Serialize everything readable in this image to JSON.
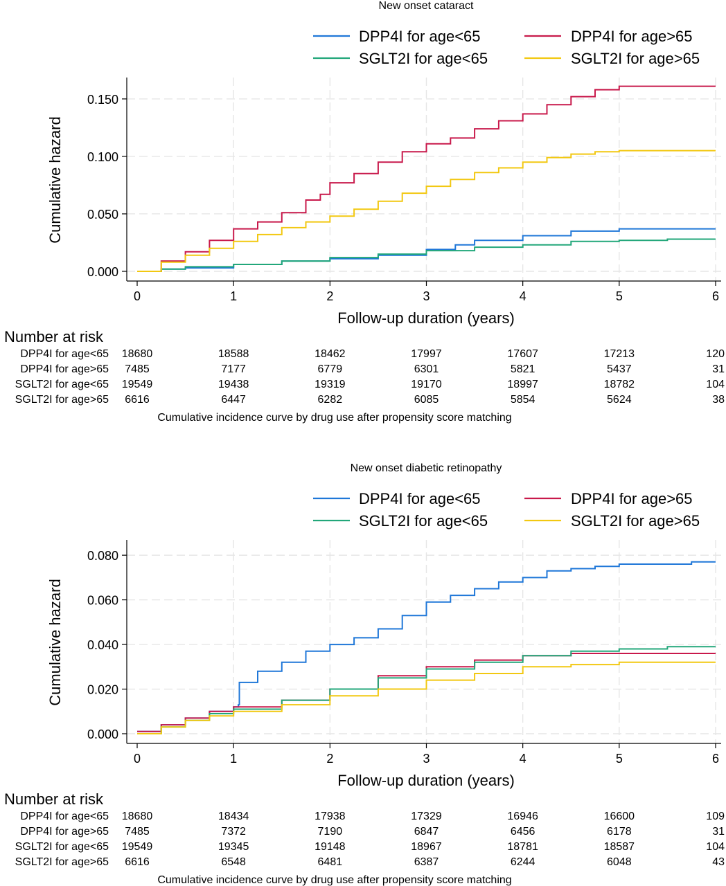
{
  "charts": [
    {
      "title": "New onset cataract",
      "ylabel": "Cumulative hazard",
      "xlabel": "Follow-up duration (years)",
      "risk_header": "Number at risk",
      "caption": "Cumulative incidence curve by drug use after propensity score matching",
      "risk_table": {
        "labels": [
          "DPP4I for age<65",
          "DPP4I for age>65",
          "SGLT2I for age<65",
          "SGLT2I for age>65"
        ],
        "rows": [
          [
            "18680",
            "18588",
            "18462",
            "17997",
            "17607",
            "17213",
            "120"
          ],
          [
            "7485",
            "7177",
            "6779",
            "6301",
            "5821",
            "5437",
            "31"
          ],
          [
            "19549",
            "19438",
            "19319",
            "19170",
            "18997",
            "18782",
            "104"
          ],
          [
            "6616",
            "6447",
            "6282",
            "6085",
            "5854",
            "5624",
            "38"
          ]
        ]
      }
    },
    {
      "title": "New onset diabetic retinopathy",
      "ylabel": "Cumulative hazard",
      "xlabel": "Follow-up duration (years)",
      "risk_header": "Number at risk",
      "caption": "Cumulative incidence curve by drug use after propensity score matching",
      "risk_table": {
        "labels": [
          "DPP4I for age<65",
          "DPP4I for age>65",
          "SGLT2I for age<65",
          "SGLT2I for age>65"
        ],
        "rows": [
          [
            "18680",
            "18434",
            "17938",
            "17329",
            "16946",
            "16600",
            "109"
          ],
          [
            "7485",
            "7372",
            "7190",
            "6847",
            "6456",
            "6178",
            "31"
          ],
          [
            "19549",
            "19345",
            "19148",
            "18967",
            "18781",
            "18587",
            "104"
          ],
          [
            "6616",
            "6548",
            "6481",
            "6387",
            "6244",
            "6048",
            "43"
          ]
        ]
      }
    }
  ],
  "chart_data": [
    {
      "type": "line",
      "title": "New onset cataract",
      "xlabel": "Follow-up duration (years)",
      "ylabel": "Cumulative hazard",
      "xlim": [
        0,
        6
      ],
      "ylim": [
        0,
        0.165
      ],
      "xticks": [
        0,
        1,
        2,
        3,
        4,
        5,
        6
      ],
      "yticks": [
        0,
        0.05,
        0.1,
        0.15
      ],
      "ytick_labels": [
        "0.000",
        "0.050",
        "0.100",
        "0.150"
      ],
      "grid": true,
      "legend_position": "top",
      "series": [
        {
          "name": "DPP4I for age<65",
          "color": "#1f77d8",
          "x": [
            0,
            0.25,
            0.5,
            1,
            1.5,
            2,
            2.5,
            3,
            3.3,
            3.5,
            4,
            4.5,
            5,
            5.5,
            6
          ],
          "y": [
            0,
            0.002,
            0.003,
            0.006,
            0.009,
            0.011,
            0.014,
            0.019,
            0.023,
            0.027,
            0.031,
            0.035,
            0.037,
            0.037,
            0.037
          ]
        },
        {
          "name": "DPP4I for age>65",
          "color": "#c8194b",
          "x": [
            0,
            0.25,
            0.5,
            0.75,
            1,
            1.25,
            1.5,
            1.75,
            1.9,
            2,
            2.25,
            2.5,
            2.75,
            3,
            3.25,
            3.5,
            3.75,
            4,
            4.25,
            4.5,
            4.75,
            5,
            5.5,
            6
          ],
          "y": [
            0,
            0.009,
            0.017,
            0.027,
            0.037,
            0.043,
            0.051,
            0.062,
            0.067,
            0.077,
            0.085,
            0.095,
            0.104,
            0.111,
            0.116,
            0.124,
            0.131,
            0.137,
            0.145,
            0.152,
            0.158,
            0.161,
            0.161,
            0.161
          ]
        },
        {
          "name": "SGLT2I for age<65",
          "color": "#22a77a",
          "x": [
            0,
            0.25,
            0.5,
            1,
            1.5,
            2,
            2.5,
            3,
            3.5,
            4,
            4.5,
            5,
            5.5,
            6
          ],
          "y": [
            0,
            0.002,
            0.004,
            0.006,
            0.009,
            0.012,
            0.015,
            0.018,
            0.021,
            0.023,
            0.026,
            0.027,
            0.028,
            0.028
          ]
        },
        {
          "name": "SGLT2I for age>65",
          "color": "#f2c811",
          "x": [
            0,
            0.25,
            0.5,
            0.75,
            1,
            1.25,
            1.5,
            1.75,
            2,
            2.25,
            2.5,
            2.75,
            3,
            3.25,
            3.5,
            3.75,
            4,
            4.25,
            4.5,
            4.75,
            5,
            5.5,
            6
          ],
          "y": [
            0,
            0.008,
            0.014,
            0.02,
            0.026,
            0.032,
            0.038,
            0.043,
            0.048,
            0.054,
            0.061,
            0.068,
            0.074,
            0.08,
            0.086,
            0.09,
            0.095,
            0.099,
            0.102,
            0.104,
            0.105,
            0.105,
            0.105
          ]
        }
      ]
    },
    {
      "type": "line",
      "title": "New onset diabetic retinopathy",
      "xlabel": "Follow-up duration (years)",
      "ylabel": "Cumulative hazard",
      "xlim": [
        0,
        6
      ],
      "ylim": [
        0,
        0.085
      ],
      "xticks": [
        0,
        1,
        2,
        3,
        4,
        5,
        6
      ],
      "yticks": [
        0,
        0.02,
        0.04,
        0.06,
        0.08
      ],
      "ytick_labels": [
        "0.000",
        "0.020",
        "0.040",
        "0.060",
        "0.080"
      ],
      "grid": true,
      "legend_position": "top",
      "series": [
        {
          "name": "DPP4I for age<65",
          "color": "#1f77d8",
          "x": [
            0,
            0.25,
            0.5,
            0.75,
            1,
            1.05,
            1.06,
            1.25,
            1.5,
            1.75,
            2,
            2.25,
            2.5,
            2.75,
            3,
            3.25,
            3.5,
            3.75,
            4,
            4.25,
            4.5,
            4.75,
            5,
            5.5,
            5.75,
            6
          ],
          "y": [
            0.001,
            0.004,
            0.007,
            0.01,
            0.012,
            0.013,
            0.023,
            0.028,
            0.032,
            0.037,
            0.04,
            0.043,
            0.047,
            0.053,
            0.059,
            0.062,
            0.065,
            0.068,
            0.07,
            0.073,
            0.074,
            0.075,
            0.076,
            0.076,
            0.077,
            0.077
          ]
        },
        {
          "name": "DPP4I for age>65",
          "color": "#c8194b",
          "x": [
            0,
            0.25,
            0.5,
            0.75,
            1,
            1.5,
            2,
            2.5,
            3,
            3.5,
            4,
            4.5,
            5,
            5.5,
            6
          ],
          "y": [
            0.001,
            0.004,
            0.007,
            0.01,
            0.012,
            0.015,
            0.02,
            0.026,
            0.03,
            0.033,
            0.035,
            0.036,
            0.036,
            0.036,
            0.036
          ]
        },
        {
          "name": "SGLT2I for age<65",
          "color": "#22a77a",
          "x": [
            0,
            0.25,
            0.5,
            0.75,
            1,
            1.5,
            2,
            2.5,
            3,
            3.5,
            4,
            4.5,
            5,
            5.5,
            6
          ],
          "y": [
            0,
            0.003,
            0.006,
            0.009,
            0.011,
            0.015,
            0.02,
            0.025,
            0.029,
            0.032,
            0.035,
            0.037,
            0.038,
            0.039,
            0.039
          ]
        },
        {
          "name": "SGLT2I for age>65",
          "color": "#f2c811",
          "x": [
            0,
            0.25,
            0.5,
            0.75,
            1,
            1.5,
            2,
            2.5,
            3,
            3.5,
            4,
            4.5,
            5,
            5.5,
            6
          ],
          "y": [
            0,
            0.003,
            0.006,
            0.008,
            0.01,
            0.013,
            0.017,
            0.02,
            0.024,
            0.027,
            0.03,
            0.031,
            0.032,
            0.032,
            0.032
          ]
        }
      ]
    }
  ]
}
